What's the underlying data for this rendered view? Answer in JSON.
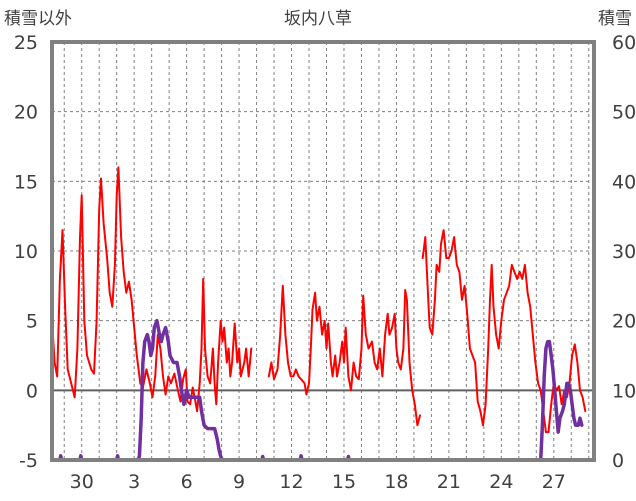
{
  "chart_data": {
    "type": "line",
    "title": "坂内八草",
    "left_axis_label": "積雪以外",
    "right_axis_label": "積雪",
    "y_left": {
      "min": -5,
      "max": 25,
      "ticks": [
        "25",
        "20",
        "15",
        "10",
        "5",
        "0",
        "-5"
      ]
    },
    "y_right": {
      "min": 0,
      "max": 60,
      "ticks": [
        "60",
        "50",
        "40",
        "30",
        "20",
        "10",
        "0"
      ]
    },
    "x_ticks": [
      "30",
      "3",
      "6",
      "9",
      "12",
      "15",
      "18",
      "21",
      "24",
      "27"
    ],
    "x_range": {
      "min": 28.3,
      "max": 59.3
    },
    "x_tick_positions": [
      30,
      33,
      36,
      39,
      42,
      45,
      48,
      51,
      54,
      57
    ],
    "x_days_note": "",
    "grid": true,
    "series": [
      {
        "name": "",
        "axis": "left",
        "color": "#ff0000",
        "points": [
          [
            28.3,
            5.0
          ],
          [
            28.45,
            2.0
          ],
          [
            28.6,
            1.0
          ],
          [
            28.75,
            8.0
          ],
          [
            28.9,
            11.5
          ],
          [
            29.05,
            6.0
          ],
          [
            29.2,
            1.5
          ],
          [
            29.4,
            0.5
          ],
          [
            29.6,
            -0.5
          ],
          [
            29.75,
            3.0
          ],
          [
            29.9,
            11.0
          ],
          [
            30.0,
            14.0
          ],
          [
            30.15,
            5.0
          ],
          [
            30.3,
            2.5
          ],
          [
            30.55,
            1.5
          ],
          [
            30.7,
            1.2
          ],
          [
            30.85,
            5.0
          ],
          [
            31.0,
            13.0
          ],
          [
            31.1,
            15.2
          ],
          [
            31.25,
            12.0
          ],
          [
            31.45,
            9.5
          ],
          [
            31.6,
            7.0
          ],
          [
            31.75,
            6.0
          ],
          [
            31.9,
            9.0
          ],
          [
            32.0,
            14.0
          ],
          [
            32.1,
            16.0
          ],
          [
            32.25,
            11.0
          ],
          [
            32.4,
            8.5
          ],
          [
            32.55,
            7.0
          ],
          [
            32.7,
            7.8
          ],
          [
            32.85,
            6.5
          ],
          [
            33.0,
            4.5
          ],
          [
            33.15,
            2.5
          ],
          [
            33.35,
            0.5
          ],
          [
            33.5,
            0.2
          ],
          [
            33.7,
            1.5
          ],
          [
            33.9,
            0.5
          ],
          [
            34.05,
            -0.5
          ],
          [
            34.2,
            1.0
          ],
          [
            34.35,
            4.0
          ],
          [
            34.5,
            3.0
          ],
          [
            34.65,
            1.0
          ],
          [
            34.8,
            -0.3
          ],
          [
            34.95,
            1.0
          ],
          [
            35.1,
            0.5
          ],
          [
            35.3,
            1.2
          ],
          [
            35.5,
            0.0
          ],
          [
            35.65,
            -0.8
          ],
          [
            35.8,
            0.8
          ],
          [
            35.95,
            1.5
          ],
          [
            36.05,
            -0.8
          ],
          [
            36.2,
            -1.0
          ],
          [
            36.35,
            0.2
          ],
          [
            36.5,
            -0.8
          ],
          [
            36.6,
            -1.5
          ],
          [
            36.75,
            0.5
          ],
          [
            36.85,
            3.0
          ],
          [
            36.95,
            8.0
          ],
          [
            37.05,
            3.0
          ],
          [
            37.2,
            1.0
          ],
          [
            37.35,
            0.5
          ],
          [
            37.5,
            3.0
          ],
          [
            37.6,
            0.5
          ],
          [
            37.7,
            -1.0
          ],
          [
            37.8,
            2.0
          ],
          [
            37.95,
            5.0
          ],
          [
            38.05,
            3.5
          ],
          [
            38.15,
            4.5
          ],
          [
            38.3,
            2.0
          ],
          [
            38.4,
            3.0
          ],
          [
            38.5,
            1.0
          ],
          [
            38.6,
            2.0
          ],
          [
            38.75,
            4.8
          ],
          [
            38.9,
            2.0
          ],
          [
            39.0,
            3.0
          ],
          [
            39.1,
            1.0
          ],
          [
            39.2,
            1.5
          ],
          [
            39.3,
            2.0
          ],
          [
            39.4,
            3.0
          ],
          [
            39.55,
            1.0
          ],
          [
            39.7,
            3.0
          ]
        ]
      },
      {
        "name": "",
        "axis": "left",
        "color": "#ff0000",
        "points": [
          [
            40.7,
            1.0
          ],
          [
            40.85,
            2.0
          ],
          [
            41.0,
            0.8
          ],
          [
            41.2,
            1.5
          ],
          [
            41.35,
            4.0
          ],
          [
            41.5,
            7.5
          ],
          [
            41.65,
            4.0
          ],
          [
            41.8,
            2.0
          ],
          [
            41.95,
            1.0
          ],
          [
            42.1,
            1.0
          ],
          [
            42.25,
            1.5
          ],
          [
            42.4,
            1.0
          ],
          [
            42.55,
            0.8
          ],
          [
            42.75,
            0.5
          ],
          [
            42.85,
            -0.3
          ],
          [
            43.0,
            0.5
          ],
          [
            43.1,
            3.0
          ],
          [
            43.2,
            5.8
          ],
          [
            43.35,
            7.0
          ],
          [
            43.45,
            5.0
          ],
          [
            43.6,
            6.0
          ],
          [
            43.75,
            4.0
          ],
          [
            43.9,
            5.0
          ],
          [
            44.0,
            3.0
          ],
          [
            44.1,
            4.8
          ],
          [
            44.25,
            2.0
          ],
          [
            44.35,
            1.0
          ],
          [
            44.5,
            2.5
          ],
          [
            44.6,
            1.0
          ],
          [
            44.75,
            2.0
          ],
          [
            44.9,
            3.5
          ],
          [
            45.0,
            2.0
          ],
          [
            45.1,
            4.5
          ],
          [
            45.25,
            1.0
          ],
          [
            45.4,
            0.0
          ],
          [
            45.55,
            2.0
          ],
          [
            45.7,
            1.0
          ],
          [
            45.85,
            0.8
          ],
          [
            46.0,
            3.0
          ],
          [
            46.1,
            6.8
          ],
          [
            46.25,
            4.0
          ],
          [
            46.4,
            3.0
          ],
          [
            46.6,
            3.5
          ],
          [
            46.75,
            2.0
          ],
          [
            46.9,
            1.5
          ],
          [
            47.05,
            3.0
          ],
          [
            47.2,
            1.0
          ],
          [
            47.35,
            4.0
          ],
          [
            47.5,
            5.5
          ],
          [
            47.6,
            4.0
          ],
          [
            47.75,
            4.5
          ],
          [
            47.9,
            5.5
          ],
          [
            48.0,
            3.0
          ],
          [
            48.1,
            2.0
          ],
          [
            48.25,
            1.5
          ],
          [
            48.4,
            3.0
          ],
          [
            48.5,
            7.2
          ],
          [
            48.6,
            6.5
          ],
          [
            48.75,
            2.0
          ],
          [
            48.9,
            0.0
          ],
          [
            49.05,
            -1.0
          ],
          [
            49.2,
            -2.5
          ],
          [
            49.35,
            -1.8
          ]
        ]
      },
      {
        "name": "",
        "axis": "left",
        "color": "#ff0000",
        "points": [
          [
            49.5,
            9.5
          ],
          [
            49.65,
            11.0
          ],
          [
            49.8,
            7.0
          ],
          [
            49.9,
            4.5
          ],
          [
            50.05,
            4.0
          ],
          [
            50.2,
            6.5
          ],
          [
            50.3,
            9.0
          ],
          [
            50.45,
            8.5
          ],
          [
            50.55,
            10.5
          ],
          [
            50.7,
            11.5
          ],
          [
            50.85,
            9.5
          ],
          [
            51.0,
            9.5
          ],
          [
            51.15,
            10.0
          ],
          [
            51.3,
            11.0
          ],
          [
            51.45,
            9.0
          ],
          [
            51.6,
            8.5
          ],
          [
            51.75,
            6.5
          ],
          [
            51.9,
            7.5
          ],
          [
            52.05,
            5.5
          ],
          [
            52.2,
            3.0
          ],
          [
            52.35,
            2.5
          ],
          [
            52.5,
            2.0
          ],
          [
            52.65,
            -0.8
          ],
          [
            52.8,
            -1.5
          ],
          [
            52.95,
            -2.5
          ],
          [
            53.1,
            -1.0
          ],
          [
            53.25,
            3.0
          ],
          [
            53.35,
            6.5
          ],
          [
            53.45,
            9.0
          ],
          [
            53.55,
            6.0
          ],
          [
            53.7,
            4.0
          ],
          [
            53.85,
            3.0
          ],
          [
            54.0,
            5.0
          ],
          [
            54.15,
            6.5
          ],
          [
            54.3,
            7.0
          ],
          [
            54.45,
            7.5
          ],
          [
            54.6,
            9.0
          ],
          [
            54.75,
            8.5
          ],
          [
            54.9,
            8.0
          ],
          [
            55.05,
            8.5
          ],
          [
            55.2,
            8.0
          ],
          [
            55.35,
            9.0
          ],
          [
            55.5,
            7.0
          ],
          [
            55.65,
            6.0
          ],
          [
            55.8,
            4.0
          ],
          [
            55.95,
            2.0
          ],
          [
            56.1,
            0.5
          ],
          [
            56.25,
            0.0
          ],
          [
            56.4,
            -1.5
          ],
          [
            56.55,
            -3.0
          ],
          [
            56.7,
            -3.0
          ],
          [
            56.85,
            -1.0
          ],
          [
            57.0,
            0.5
          ],
          [
            57.15,
            0.0
          ],
          [
            57.3,
            0.3
          ],
          [
            57.45,
            -1.0
          ],
          [
            57.6,
            0.0
          ],
          [
            57.75,
            -0.5
          ],
          [
            57.9,
            0.5
          ],
          [
            58.05,
            2.5
          ],
          [
            58.2,
            3.3
          ],
          [
            58.35,
            2.0
          ],
          [
            58.5,
            0.0
          ],
          [
            58.65,
            -0.5
          ],
          [
            58.8,
            -1.5
          ]
        ]
      },
      {
        "name": "",
        "axis": "right",
        "color": "#7030a0",
        "points": [
          [
            28.3,
            0
          ],
          [
            28.75,
            0
          ],
          [
            28.8,
            0.6
          ],
          [
            28.85,
            0
          ],
          [
            29.9,
            0
          ],
          [
            29.95,
            0.6
          ],
          [
            30.0,
            0
          ],
          [
            32.0,
            0
          ],
          [
            32.05,
            0.6
          ],
          [
            32.1,
            0
          ],
          [
            33.2,
            0
          ],
          [
            33.3,
            0.5
          ],
          [
            33.4,
            6
          ],
          [
            33.5,
            14
          ],
          [
            33.6,
            17
          ],
          [
            33.75,
            18
          ],
          [
            33.85,
            17
          ],
          [
            33.95,
            15
          ],
          [
            34.05,
            16
          ],
          [
            34.15,
            19
          ],
          [
            34.3,
            20
          ],
          [
            34.45,
            18
          ],
          [
            34.55,
            17
          ],
          [
            34.65,
            18
          ],
          [
            34.8,
            19
          ],
          [
            34.95,
            17
          ],
          [
            35.05,
            15
          ],
          [
            35.25,
            14
          ],
          [
            35.45,
            14
          ],
          [
            35.6,
            12
          ],
          [
            35.7,
            10
          ],
          [
            35.85,
            8
          ],
          [
            36.0,
            10
          ],
          [
            36.15,
            9
          ],
          [
            36.3,
            9
          ],
          [
            36.45,
            9
          ],
          [
            36.6,
            9
          ],
          [
            36.75,
            9
          ],
          [
            36.85,
            7
          ],
          [
            37.0,
            5
          ],
          [
            37.2,
            4.5
          ],
          [
            37.4,
            4.5
          ],
          [
            37.6,
            4.5
          ],
          [
            37.75,
            3
          ],
          [
            37.85,
            1.5
          ],
          [
            37.95,
            0.5
          ],
          [
            38.05,
            0
          ],
          [
            40.3,
            0
          ],
          [
            40.35,
            0.5
          ],
          [
            40.4,
            0
          ],
          [
            42.5,
            0
          ],
          [
            42.55,
            0.6
          ],
          [
            42.6,
            0
          ],
          [
            45.2,
            0
          ],
          [
            45.25,
            0.5
          ],
          [
            45.3,
            0
          ],
          [
            56.25,
            0
          ],
          [
            56.35,
            5
          ],
          [
            56.45,
            12
          ],
          [
            56.55,
            16
          ],
          [
            56.65,
            17
          ],
          [
            56.75,
            17
          ],
          [
            56.85,
            15
          ],
          [
            56.95,
            13
          ],
          [
            57.05,
            10
          ],
          [
            57.15,
            7
          ],
          [
            57.25,
            4
          ],
          [
            57.35,
            6
          ],
          [
            57.5,
            7
          ],
          [
            57.6,
            8
          ],
          [
            57.75,
            11
          ],
          [
            57.85,
            11
          ],
          [
            57.95,
            10
          ],
          [
            58.05,
            8
          ],
          [
            58.15,
            6
          ],
          [
            58.25,
            5
          ],
          [
            58.4,
            5
          ],
          [
            58.5,
            6
          ],
          [
            58.6,
            5
          ]
        ]
      }
    ]
  }
}
